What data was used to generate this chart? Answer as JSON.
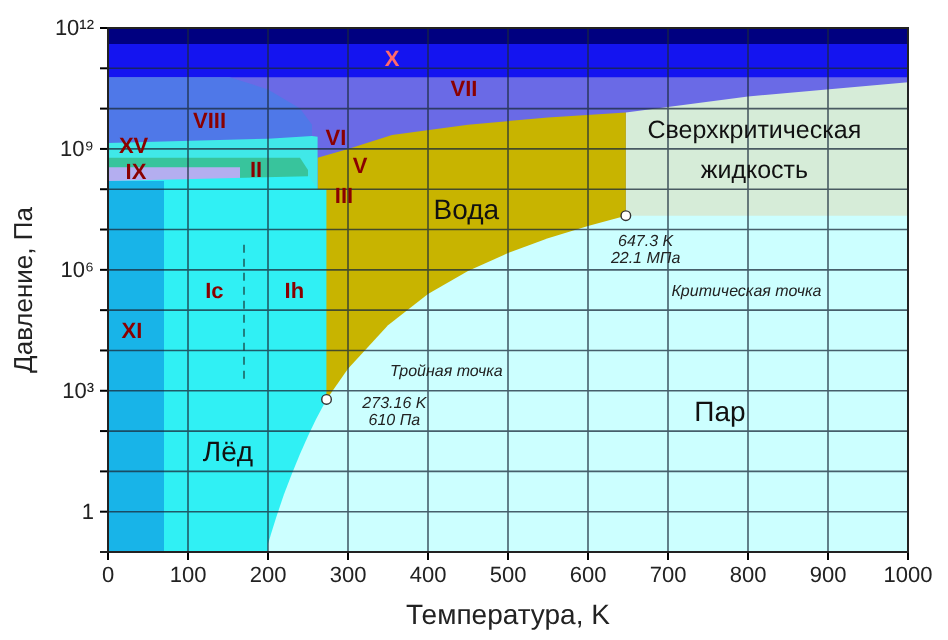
{
  "chart_data": {
    "type": "area",
    "xlabel": "Температура, K",
    "ylabel": "Давление, Па",
    "log": "y",
    "grid": true,
    "xlim": [
      0,
      1000
    ],
    "xticks": [
      0,
      100,
      200,
      300,
      400,
      500,
      600,
      700,
      800,
      900,
      1000
    ],
    "ylim": [
      0.1,
      1000000000000.0
    ],
    "yticks": [
      {
        "value": 1,
        "label": "1"
      },
      {
        "value": 10,
        "label": null
      },
      {
        "value": 100,
        "label": null
      },
      {
        "value": 1000,
        "label": "10³"
      },
      {
        "value": 10000,
        "label": null
      },
      {
        "value": 100000,
        "label": null
      },
      {
        "value": 1000000,
        "label": "10⁶"
      },
      {
        "value": 10000000,
        "label": null
      },
      {
        "value": 100000000,
        "label": null
      },
      {
        "value": 1000000000,
        "label": "10⁹"
      },
      {
        "value": 10000000000,
        "label": null
      },
      {
        "value": 100000000000,
        "label": null
      },
      {
        "value": 1000000000000,
        "label": "10¹²"
      }
    ],
    "series": [
      {
        "color": "#000080",
        "x": [
          0,
          1000
        ],
        "values": [
          1000000000000.0,
          1000000000000.0
        ]
      },
      {
        "color": "#1414f0",
        "x": [
          0,
          1000
        ],
        "values": [
          400000000000.0,
          400000000000.0
        ]
      },
      {
        "color": "#6a6ae6",
        "x": [
          0,
          1000
        ],
        "values": [
          60000000000.0,
          60000000000.0
        ]
      },
      {
        "color": "#4f78e8",
        "x": [
          0,
          152,
          200,
          240,
          255
        ],
        "values": [
          60000000000.0,
          60000000000.0,
          30000000000.0,
          10000000000.0,
          4000000000.0
        ]
      },
      {
        "color": "#d6ecd8",
        "x": [
          647.3,
          800,
          1000
        ],
        "values": [
          8000000000.0,
          20000000000.0,
          45000000000.0
        ]
      },
      {
        "color": "#c8b400",
        "x": [
          262,
          300,
          355,
          450,
          550,
          647.3
        ],
        "values": [
          600000000.0,
          1000000000.0,
          2200000000.0,
          4000000000.0,
          6000000000.0,
          8000000000.0
        ]
      },
      {
        "color": "#40e8e8",
        "x": [
          0,
          200,
          255,
          262
        ],
        "values": [
          1400000000.0,
          1800000000.0,
          2100000000.0,
          2000000000.0
        ]
      },
      {
        "color": "#38c49c",
        "x": [
          0,
          240,
          250
        ],
        "values": [
          600000000.0,
          600000000.0,
          300000000.0
        ]
      },
      {
        "color": "#b4aef0",
        "x": [
          0,
          165
        ],
        "values": [
          350000000.0,
          350000000.0
        ]
      },
      {
        "color": "#30f0f4",
        "x": [
          0,
          251,
          262,
          273
        ],
        "values": [
          160000000.0,
          210000000.0,
          100000000.0,
          100000000.0
        ]
      },
      {
        "color": "#18b4e8",
        "x": [
          0,
          70
        ],
        "values": [
          160000000.0,
          160000000.0
        ]
      },
      {
        "color": "#ccffff",
        "x": [
          200,
          210,
          220,
          230,
          240,
          250,
          260,
          273.16,
          300,
          350,
          400,
          450,
          500,
          550,
          600,
          647.3,
          1000
        ],
        "values": [
          0.16,
          0.7,
          2.7,
          8.9,
          27,
          76,
          196,
          610,
          3500,
          42000,
          250000,
          930000,
          2600000,
          6100000,
          12300000,
          22100000,
          22100000
        ]
      },
      {
        "type": "line",
        "color": "#208080",
        "line_style": "dashed",
        "x": [
          170,
          170
        ],
        "values": [
          2000,
          5000000
        ]
      },
      {
        "type": "scatter",
        "color": "#ffffff",
        "marker": "circle",
        "x": [
          273.16,
          647.3
        ],
        "values": [
          610,
          22100000
        ]
      }
    ],
    "annotations": [
      "X",
      "VII",
      "VIII",
      "XV",
      "IX",
      "II",
      "VI",
      "V",
      "III",
      "Вода",
      "Сверхкритическая",
      "жидкость",
      "647.3 K",
      "22.1 МПа",
      "Критическая точка",
      "Ic",
      "Ih",
      "XI",
      "Тройная точка",
      "273.16 K",
      "610 Па",
      "Лёд",
      "Пар"
    ]
  }
}
